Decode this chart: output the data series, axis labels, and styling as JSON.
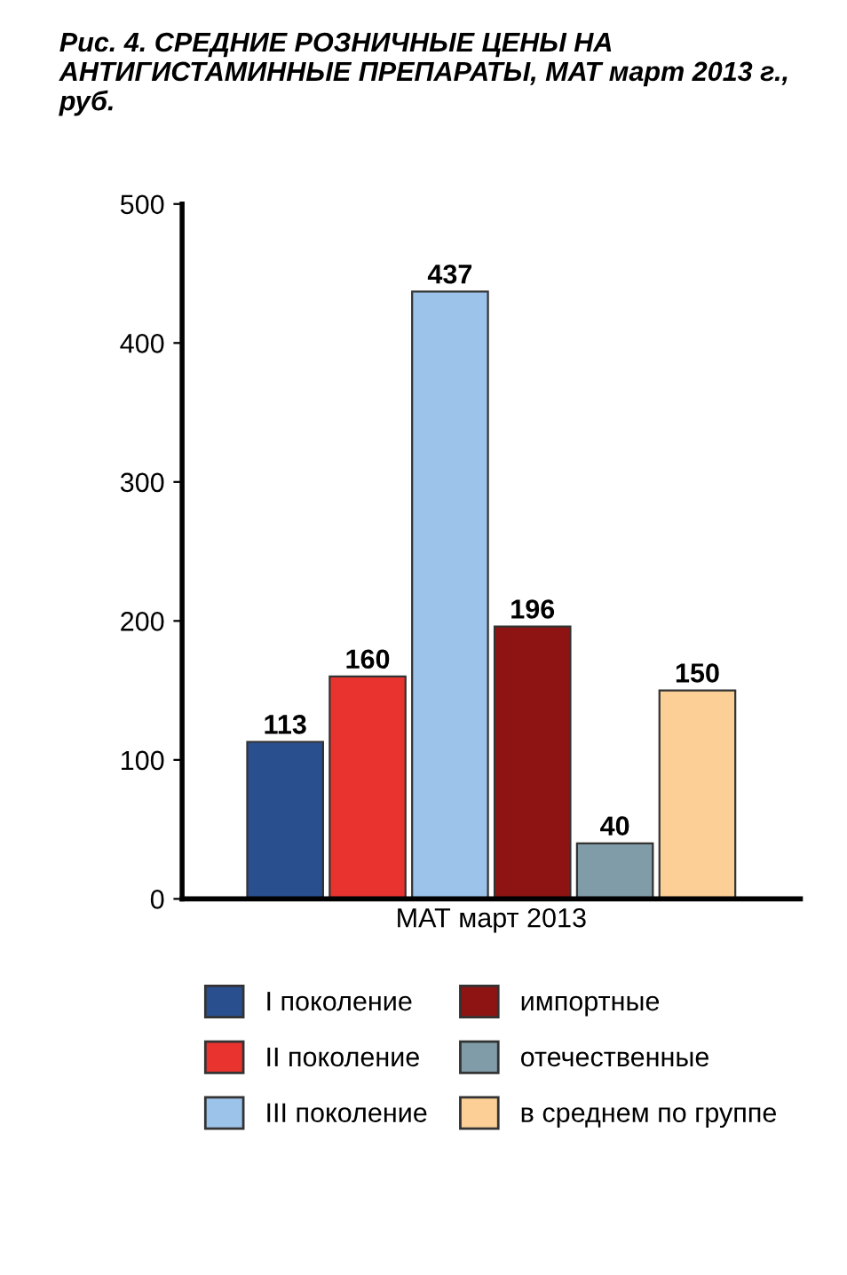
{
  "chart_data": {
    "type": "bar",
    "title": "Рис. 4. СРЕДНИЕ РОЗНИЧНЫЕ ЦЕНЫ НА АНТИГИСТАМИННЫЕ ПРЕПАРАТЫ, МАТ март 2013 г., руб.",
    "categories": [
      "МАТ март 2013"
    ],
    "series": [
      {
        "name": "I поколение",
        "color": "#2a4f8f",
        "values": [
          113
        ]
      },
      {
        "name": "II поколение",
        "color": "#e8332f",
        "values": [
          160
        ]
      },
      {
        "name": "III поколение",
        "color": "#9cc3ea",
        "values": [
          437
        ]
      },
      {
        "name": "импортные",
        "color": "#8e1414",
        "values": [
          196
        ]
      },
      {
        "name": "отечественные",
        "color": "#7f9ca8",
        "values": [
          40
        ]
      },
      {
        "name": "в среднем по группе",
        "color": "#fbcf95",
        "values": [
          150
        ]
      }
    ],
    "ylim": [
      0,
      500
    ],
    "yticks": [
      0,
      100,
      200,
      300,
      400,
      500
    ],
    "data_labels": true,
    "grid": false,
    "legend": "bottom"
  }
}
